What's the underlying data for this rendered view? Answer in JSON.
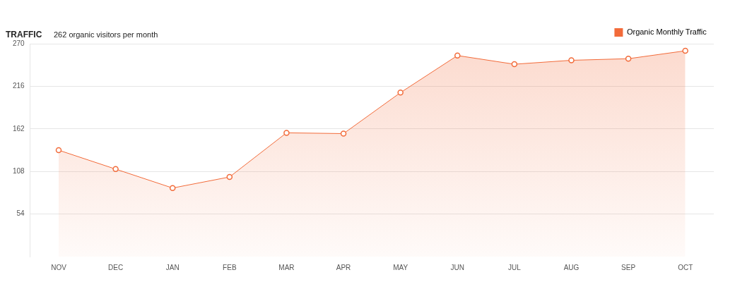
{
  "chart_data": {
    "type": "area",
    "title": "TRAFFIC",
    "subtitle": "262 organic visitors per month",
    "categories": [
      "NOV",
      "DEC",
      "JAN",
      "FEB",
      "MAR",
      "APR",
      "MAY",
      "JUN",
      "JUL",
      "AUG",
      "SEP",
      "OCT"
    ],
    "series": [
      {
        "name": "Organic Monthly Traffic",
        "color": "#f26b3a",
        "values": [
          135,
          111,
          87,
          101,
          157,
          156,
          208,
          255,
          244,
          249,
          251,
          261
        ]
      }
    ],
    "ylim": [
      0,
      270
    ],
    "yticks": [
      54,
      108,
      162,
      216,
      270
    ],
    "grid": "y",
    "legend": "top right",
    "marker": "circle"
  }
}
